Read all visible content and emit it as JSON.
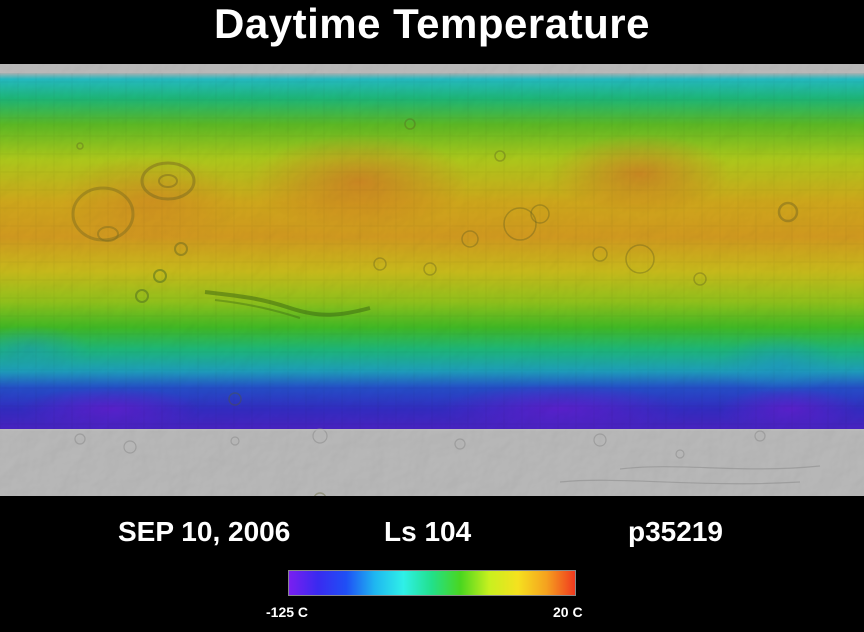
{
  "title": "Daytime Temperature",
  "info": {
    "date": "SEP 10, 2006",
    "solar_longitude": "Ls 104",
    "product_id": "p35219"
  },
  "scale": {
    "min_label": "-125 C",
    "max_label": "20 C",
    "min_value": -125,
    "max_value": 20,
    "unit": "C",
    "colors": [
      "#7a1ff0",
      "#3a2af0",
      "#1f4ff5",
      "#1fb6f0",
      "#2ff0e8",
      "#22e08a",
      "#4ad61f",
      "#c8f01f",
      "#f5e11f",
      "#f5a21f",
      "#f0391f"
    ]
  },
  "map": {
    "projection": "global-cylindrical",
    "colors": {
      "polar_cap": "#d9d9d9",
      "north_frost": "#2ff0e8",
      "cold": "#4a2ad8",
      "warm": "#f5c21f",
      "hot": "#f0a030"
    }
  }
}
